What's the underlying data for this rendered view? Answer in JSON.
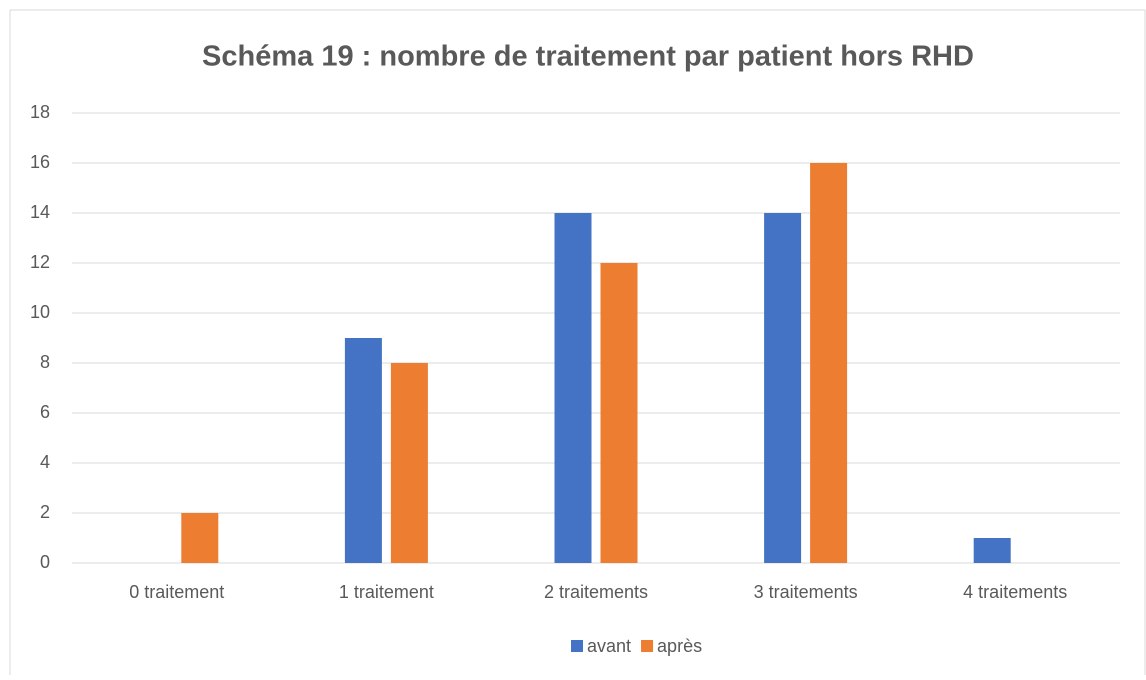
{
  "chart_data": {
    "type": "bar",
    "title": "Schéma 19 : nombre de traitement par patient hors RHD",
    "categories": [
      "0 traitement",
      "1 traitement",
      "2 traitements",
      "3 traitements",
      "4 traitements"
    ],
    "series": [
      {
        "name": "avant",
        "color": "#4472c4",
        "values": [
          0,
          9,
          14,
          14,
          1
        ]
      },
      {
        "name": "après",
        "color": "#ed7d31",
        "values": [
          2,
          8,
          12,
          16,
          0
        ]
      }
    ],
    "ylim": [
      0,
      18
    ],
    "yticks": [
      0,
      2,
      4,
      6,
      8,
      10,
      12,
      14,
      16,
      18
    ],
    "grid": true,
    "legend": "bottom"
  }
}
